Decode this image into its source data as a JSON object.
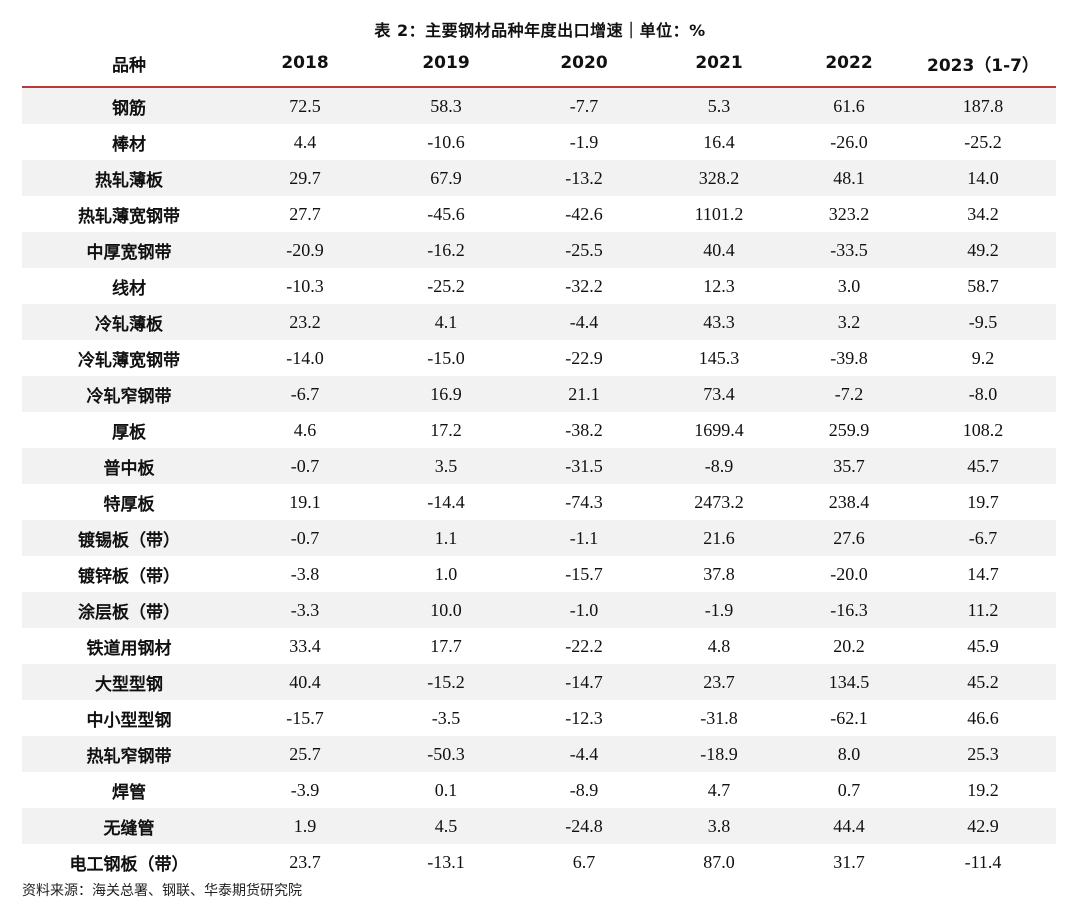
{
  "caption": "表 2：主要钢材品种年度出口增速｜单位：%",
  "headers": [
    "品种",
    "2018",
    "2019",
    "2020",
    "2021",
    "2022",
    "2023（1-7）"
  ],
  "rows": [
    [
      "钢筋",
      "72.5",
      "58.3",
      "-7.7",
      "5.3",
      "61.6",
      "187.8"
    ],
    [
      "棒材",
      "4.4",
      "-10.6",
      "-1.9",
      "16.4",
      "-26.0",
      "-25.2"
    ],
    [
      "热轧薄板",
      "29.7",
      "67.9",
      "-13.2",
      "328.2",
      "48.1",
      "14.0"
    ],
    [
      "热轧薄宽钢带",
      "27.7",
      "-45.6",
      "-42.6",
      "1101.2",
      "323.2",
      "34.2"
    ],
    [
      "中厚宽钢带",
      "-20.9",
      "-16.2",
      "-25.5",
      "40.4",
      "-33.5",
      "49.2"
    ],
    [
      "线材",
      "-10.3",
      "-25.2",
      "-32.2",
      "12.3",
      "3.0",
      "58.7"
    ],
    [
      "冷轧薄板",
      "23.2",
      "4.1",
      "-4.4",
      "43.3",
      "3.2",
      "-9.5"
    ],
    [
      "冷轧薄宽钢带",
      "-14.0",
      "-15.0",
      "-22.9",
      "145.3",
      "-39.8",
      "9.2"
    ],
    [
      "冷轧窄钢带",
      "-6.7",
      "16.9",
      "21.1",
      "73.4",
      "-7.2",
      "-8.0"
    ],
    [
      "厚板",
      "4.6",
      "17.2",
      "-38.2",
      "1699.4",
      "259.9",
      "108.2"
    ],
    [
      "普中板",
      "-0.7",
      "3.5",
      "-31.5",
      "-8.9",
      "35.7",
      "45.7"
    ],
    [
      "特厚板",
      "19.1",
      "-14.4",
      "-74.3",
      "2473.2",
      "238.4",
      "19.7"
    ],
    [
      "镀锡板（带）",
      "-0.7",
      "1.1",
      "-1.1",
      "21.6",
      "27.6",
      "-6.7"
    ],
    [
      "镀锌板（带）",
      "-3.8",
      "1.0",
      "-15.7",
      "37.8",
      "-20.0",
      "14.7"
    ],
    [
      "涂层板（带）",
      "-3.3",
      "10.0",
      "-1.0",
      "-1.9",
      "-16.3",
      "11.2"
    ],
    [
      "铁道用钢材",
      "33.4",
      "17.7",
      "-22.2",
      "4.8",
      "20.2",
      "45.9"
    ],
    [
      "大型型钢",
      "40.4",
      "-15.2",
      "-14.7",
      "23.7",
      "134.5",
      "45.2"
    ],
    [
      "中小型型钢",
      "-15.7",
      "-3.5",
      "-12.3",
      "-31.8",
      "-62.1",
      "46.6"
    ],
    [
      "热轧窄钢带",
      "25.7",
      "-50.3",
      "-4.4",
      "-18.9",
      "8.0",
      "25.3"
    ],
    [
      "焊管",
      "-3.9",
      "0.1",
      "-8.9",
      "4.7",
      "0.7",
      "19.2"
    ],
    [
      "无缝管",
      "1.9",
      "4.5",
      "-24.8",
      "3.8",
      "44.4",
      "42.9"
    ],
    [
      "电工钢板（带）",
      "23.7",
      "-13.1",
      "6.7",
      "87.0",
      "31.7",
      "-11.4"
    ]
  ],
  "source": "资料来源：海关总署、钢联、华泰期货研究院",
  "colors": {
    "header_rule": "#b73a3a",
    "stripe": "#f2f2f2"
  }
}
